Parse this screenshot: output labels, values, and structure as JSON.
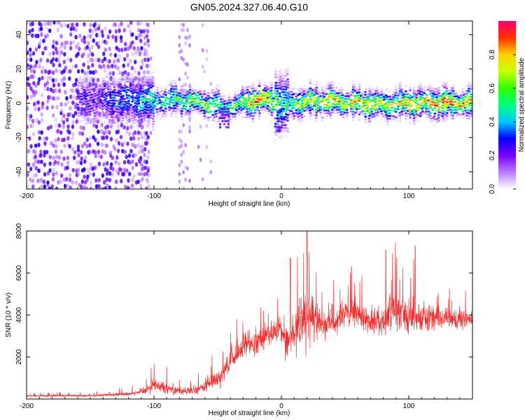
{
  "title": "GN05.2024.327.06.40.G10",
  "chart_data": [
    {
      "type": "heatmap",
      "xlabel": "Height of straight line (km)",
      "ylabel": "Frequency (Hz)",
      "xlim": [
        -200,
        150
      ],
      "ylim": [
        -50,
        48
      ],
      "xticks": [
        -200,
        -100,
        0,
        100
      ],
      "yticks": [
        -40,
        -20,
        0,
        20,
        40
      ],
      "grid": false,
      "colorbar": {
        "label": "Normalized spectral amplitude",
        "range": [
          0.0,
          1.0
        ],
        "ticks": [
          0.0,
          0.2,
          0.4,
          0.6,
          0.8
        ],
        "colors": [
          "#ffffff",
          "#b77cff",
          "#7b00ff",
          "#0000ff",
          "#00c8ff",
          "#00ff80",
          "#33ff00",
          "#c8ff00",
          "#ffd000",
          "#ff3000",
          "#ff0070"
        ]
      },
      "description_points": {
        "ridge_x": [
          -160,
          -140,
          -120,
          -100,
          -80,
          -60,
          -45,
          -35,
          -20,
          -10,
          0,
          20,
          40,
          60,
          80,
          100,
          120,
          140,
          150
        ],
        "ridge_y": [
          2,
          2,
          2,
          1,
          2,
          0,
          -3,
          -1,
          2,
          2,
          -1,
          1,
          1,
          0,
          -1,
          0,
          0,
          0,
          0
        ],
        "peak_amplitude": [
          0.25,
          0.3,
          0.4,
          0.5,
          0.6,
          0.7,
          0.55,
          0.6,
          0.9,
          0.9,
          0.5,
          0.75,
          0.8,
          0.85,
          0.7,
          0.8,
          0.85,
          0.9,
          0.85
        ],
        "noise_x_range": [
          -200,
          -105
        ],
        "noise_amplitude": 0.25
      }
    },
    {
      "type": "line",
      "xlabel": "Height of straight line (km)",
      "ylabel": "SNR (10 * v/v)",
      "xlim": [
        -200,
        150
      ],
      "ylim": [
        0,
        8000
      ],
      "xticks": [
        -200,
        -100,
        0,
        100
      ],
      "yticks": [
        2000,
        4000,
        6000,
        8000
      ],
      "grid": false,
      "color": "#f03030",
      "envelope": {
        "x": [
          -200,
          -150,
          -120,
          -110,
          -100,
          -90,
          -80,
          -70,
          -60,
          -50,
          -40,
          -30,
          -20,
          -10,
          0,
          5,
          10,
          15,
          20,
          30,
          40,
          50,
          60,
          70,
          80,
          90,
          100,
          110,
          120,
          130,
          140,
          150
        ],
        "mean": [
          150,
          150,
          250,
          350,
          650,
          550,
          400,
          350,
          600,
          1000,
          1700,
          2500,
          2800,
          3100,
          3300,
          2600,
          3300,
          3600,
          3900,
          3600,
          3700,
          4000,
          4000,
          3700,
          3800,
          4200,
          4000,
          3900,
          3900,
          3800,
          3800,
          3800
        ],
        "spread": [
          80,
          80,
          150,
          250,
          500,
          450,
          300,
          300,
          500,
          700,
          800,
          900,
          900,
          900,
          900,
          1400,
          1600,
          1800,
          2000,
          1200,
          1000,
          1100,
          1000,
          800,
          1200,
          1500,
          1500,
          1200,
          900,
          700,
          700,
          700
        ]
      },
      "peaks": [
        {
          "x": 20,
          "y": 8000
        },
        {
          "x": 105,
          "y": 7300
        },
        {
          "x": 82,
          "y": 7100
        },
        {
          "x": 7,
          "y": 6700
        },
        {
          "x": 55,
          "y": 6300
        }
      ]
    }
  ]
}
